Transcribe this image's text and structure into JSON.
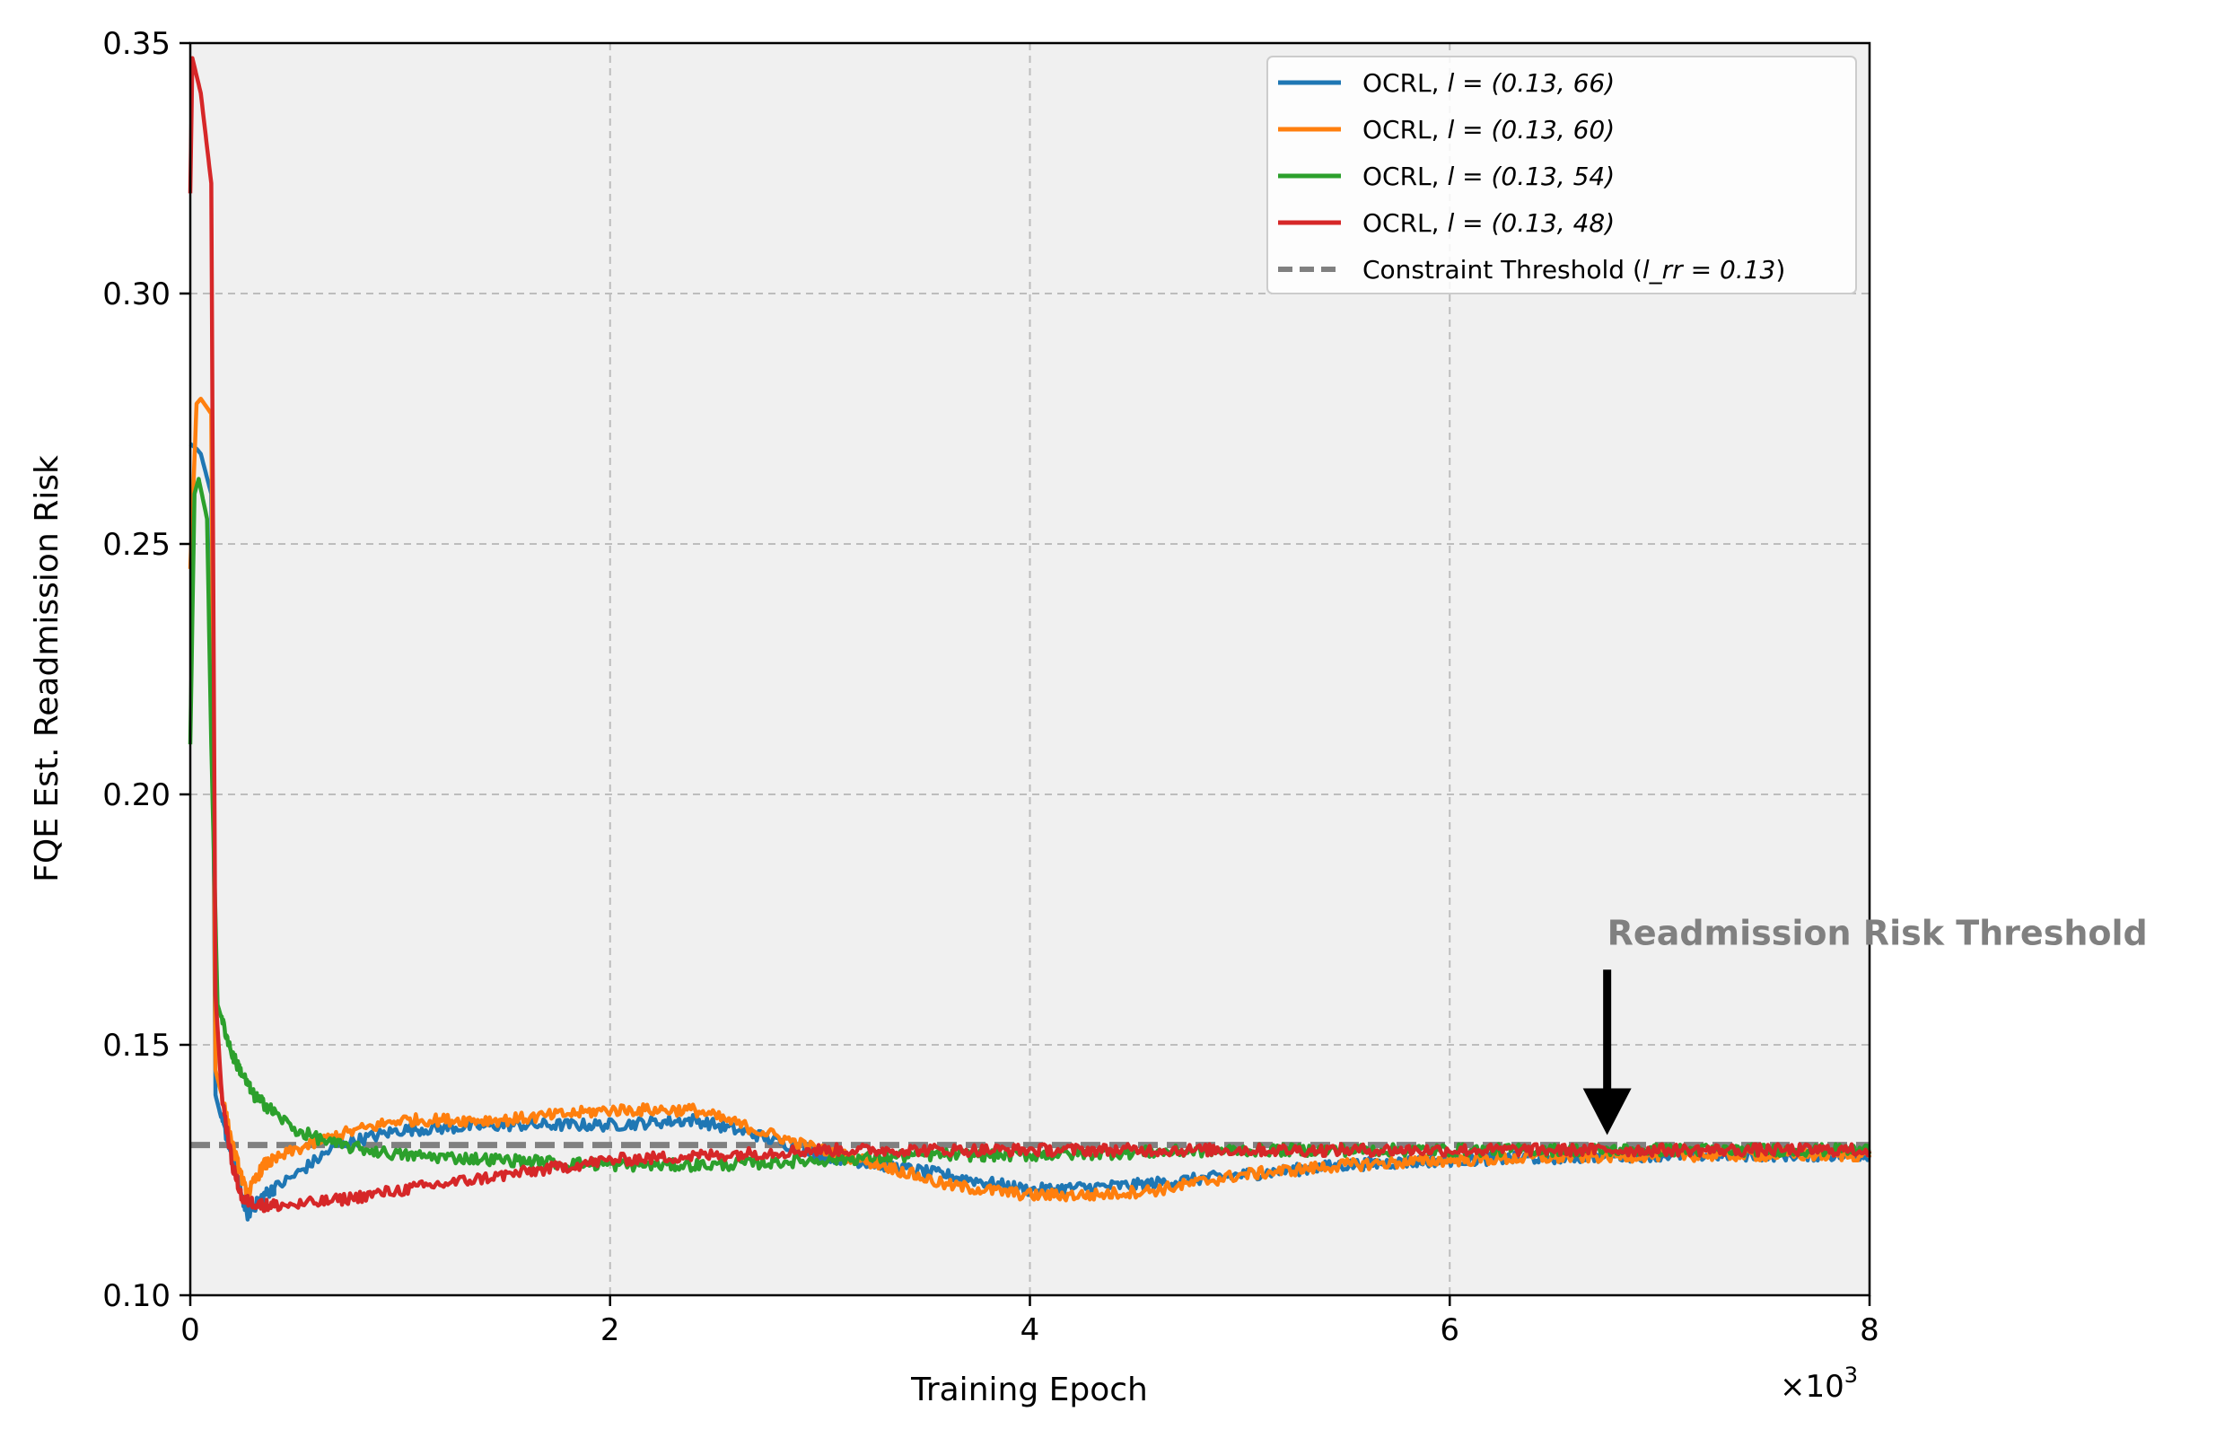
{
  "chart_data": {
    "type": "line",
    "xlabel": "Training Epoch",
    "ylabel": "FQE Est. Readmission Risk",
    "x_multiplier_label": "×10",
    "x_multiplier_exp": "3",
    "xlim": [
      0,
      8
    ],
    "ylim": [
      0.1,
      0.35
    ],
    "xticks": [
      0,
      2,
      4,
      6,
      8
    ],
    "xtick_labels": [
      "0",
      "2",
      "4",
      "6",
      "8"
    ],
    "yticks": [
      0.1,
      0.15,
      0.2,
      0.25,
      0.3,
      0.35
    ],
    "ytick_labels": [
      "0.10",
      "0.15",
      "0.20",
      "0.25",
      "0.30",
      "0.35"
    ],
    "grid": true,
    "grid_style": "dashed",
    "legend_position": "top-right",
    "background_color": "#f0f0f0",
    "threshold": {
      "name_prefix": "Constraint Threshold (",
      "name_math": "l_rr = 0.13",
      "name_suffix": ")",
      "value": 0.13,
      "color": "#808080",
      "style": "dashed"
    },
    "annotation": {
      "text": "Readmission Risk Threshold",
      "arrow_tail": [
        6.75,
        0.165
      ],
      "arrow_head": [
        6.75,
        0.132
      ],
      "color": "#808080"
    },
    "series": [
      {
        "name_prefix": "OCRL, ",
        "name_math": "l = (0.13, 66)",
        "color": "#1f77b4",
        "x": [
          0,
          0.03,
          0.05,
          0.1,
          0.12,
          0.15,
          0.2,
          0.27,
          0.35,
          0.5,
          0.7,
          1.0,
          1.5,
          2.0,
          2.4,
          2.7,
          3.0,
          3.3,
          3.6,
          4.0,
          4.5,
          5.0,
          5.5,
          6.0,
          7.0,
          8.0
        ],
        "y": [
          0.27,
          0.269,
          0.268,
          0.26,
          0.14,
          0.135,
          0.128,
          0.116,
          0.12,
          0.124,
          0.13,
          0.133,
          0.134,
          0.134,
          0.135,
          0.132,
          0.128,
          0.126,
          0.124,
          0.121,
          0.122,
          0.124,
          0.126,
          0.127,
          0.128,
          0.128
        ]
      },
      {
        "name_prefix": "OCRL, ",
        "name_math": "l = (0.13, 60)",
        "color": "#ff7f0e",
        "x": [
          0,
          0.03,
          0.05,
          0.1,
          0.12,
          0.15,
          0.2,
          0.27,
          0.35,
          0.5,
          0.7,
          1.0,
          1.5,
          2.0,
          2.4,
          2.7,
          3.0,
          3.3,
          3.6,
          4.0,
          4.3,
          4.6,
          5.0,
          5.5,
          6.0,
          7.0,
          8.0
        ],
        "y": [
          0.245,
          0.278,
          0.279,
          0.276,
          0.145,
          0.14,
          0.13,
          0.12,
          0.126,
          0.129,
          0.132,
          0.135,
          0.135,
          0.137,
          0.137,
          0.133,
          0.129,
          0.126,
          0.122,
          0.12,
          0.12,
          0.121,
          0.124,
          0.126,
          0.127,
          0.128,
          0.128
        ]
      },
      {
        "name_prefix": "OCRL, ",
        "name_math": "l = (0.13, 54)",
        "color": "#2ca02c",
        "x": [
          0,
          0.02,
          0.04,
          0.08,
          0.1,
          0.13,
          0.2,
          0.3,
          0.5,
          0.7,
          1.0,
          1.5,
          2.0,
          2.5,
          3.0,
          3.5,
          4.0,
          5.0,
          6.0,
          7.0,
          8.0
        ],
        "y": [
          0.21,
          0.26,
          0.263,
          0.255,
          0.21,
          0.158,
          0.148,
          0.14,
          0.133,
          0.13,
          0.128,
          0.127,
          0.126,
          0.126,
          0.127,
          0.128,
          0.128,
          0.129,
          0.129,
          0.129,
          0.129
        ]
      },
      {
        "name_prefix": "OCRL, ",
        "name_math": "l = (0.13, 48)",
        "color": "#d62728",
        "x": [
          0,
          0.01,
          0.05,
          0.1,
          0.12,
          0.15,
          0.2,
          0.25,
          0.35,
          0.5,
          0.7,
          1.0,
          1.5,
          2.0,
          2.5,
          3.0,
          3.5,
          4.0,
          5.0,
          6.0,
          7.0,
          8.0
        ],
        "y": [
          0.32,
          0.347,
          0.34,
          0.322,
          0.16,
          0.14,
          0.126,
          0.119,
          0.118,
          0.118,
          0.119,
          0.121,
          0.124,
          0.127,
          0.128,
          0.129,
          0.129,
          0.129,
          0.129,
          0.129,
          0.129,
          0.129
        ]
      }
    ]
  }
}
